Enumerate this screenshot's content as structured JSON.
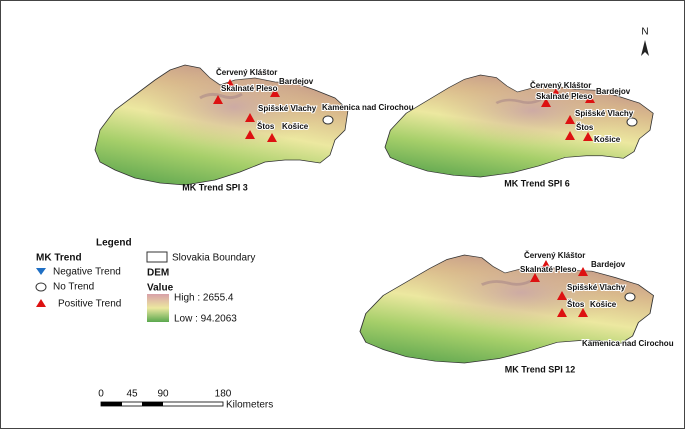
{
  "north": "N",
  "panels": [
    {
      "title": "MK Trend SPI 3",
      "stations": [
        "Červený Kláštor",
        "Bardejov",
        "Skalnaté Pleso",
        "Spišské Vlachy",
        "Kamenica nad Cirochou",
        "Štos",
        "Košice"
      ]
    },
    {
      "title": "MK Trend SPI 6",
      "stations": [
        "Červený Kláštor",
        "Bardejov",
        "Skalnaté Pleso",
        "Spišské Vlachy",
        "Štos",
        "Košice"
      ]
    },
    {
      "title": "MK Trend SPI 12",
      "stations": [
        "Červený Kláštor",
        "Bardejov",
        "Skalnaté Pleso",
        "Spišské Vlachy",
        "Kamenica nad Cirochou",
        "Štos",
        "Košice"
      ]
    }
  ],
  "legend": {
    "title": "Legend",
    "trend_heading": "MK Trend",
    "negative": "Negative Trend",
    "none": "No Trend",
    "positive": "Positive Trend",
    "boundary": "Slovakia Boundary",
    "dem": "DEM",
    "value": "Value",
    "high": "High : 2655.4",
    "low": "Low : 94.2063"
  },
  "scale": {
    "labels": [
      "0",
      "45",
      "90",
      "180"
    ],
    "unit": "Kilometers"
  }
}
